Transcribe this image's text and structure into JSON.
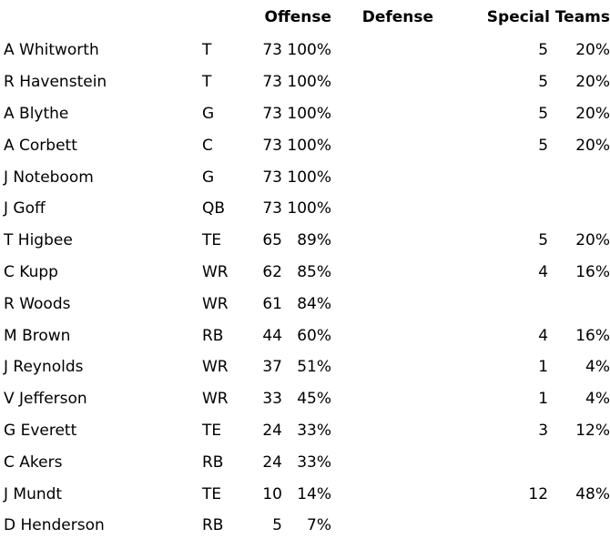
{
  "headers": {
    "offense": "Offense",
    "defense": "Defense",
    "special_teams": "Special Teams"
  },
  "rows": [
    {
      "name": "A Whitworth",
      "pos": "T",
      "off_snaps": "73",
      "off_pct": "100%",
      "def_snaps": "",
      "def_pct": "",
      "st_snaps": "5",
      "st_pct": "20%"
    },
    {
      "name": "R Havenstein",
      "pos": "T",
      "off_snaps": "73",
      "off_pct": "100%",
      "def_snaps": "",
      "def_pct": "",
      "st_snaps": "5",
      "st_pct": "20%"
    },
    {
      "name": "A Blythe",
      "pos": "G",
      "off_snaps": "73",
      "off_pct": "100%",
      "def_snaps": "",
      "def_pct": "",
      "st_snaps": "5",
      "st_pct": "20%"
    },
    {
      "name": "A Corbett",
      "pos": "C",
      "off_snaps": "73",
      "off_pct": "100%",
      "def_snaps": "",
      "def_pct": "",
      "st_snaps": "5",
      "st_pct": "20%"
    },
    {
      "name": "J Noteboom",
      "pos": "G",
      "off_snaps": "73",
      "off_pct": "100%",
      "def_snaps": "",
      "def_pct": "",
      "st_snaps": "",
      "st_pct": ""
    },
    {
      "name": "J Goff",
      "pos": "QB",
      "off_snaps": "73",
      "off_pct": "100%",
      "def_snaps": "",
      "def_pct": "",
      "st_snaps": "",
      "st_pct": ""
    },
    {
      "name": "T Higbee",
      "pos": "TE",
      "off_snaps": "65",
      "off_pct": "89%",
      "def_snaps": "",
      "def_pct": "",
      "st_snaps": "5",
      "st_pct": "20%"
    },
    {
      "name": "C Kupp",
      "pos": "WR",
      "off_snaps": "62",
      "off_pct": "85%",
      "def_snaps": "",
      "def_pct": "",
      "st_snaps": "4",
      "st_pct": "16%"
    },
    {
      "name": "R Woods",
      "pos": "WR",
      "off_snaps": "61",
      "off_pct": "84%",
      "def_snaps": "",
      "def_pct": "",
      "st_snaps": "",
      "st_pct": ""
    },
    {
      "name": "M Brown",
      "pos": "RB",
      "off_snaps": "44",
      "off_pct": "60%",
      "def_snaps": "",
      "def_pct": "",
      "st_snaps": "4",
      "st_pct": "16%"
    },
    {
      "name": "J Reynolds",
      "pos": "WR",
      "off_snaps": "37",
      "off_pct": "51%",
      "def_snaps": "",
      "def_pct": "",
      "st_snaps": "1",
      "st_pct": "4%"
    },
    {
      "name": "V Jefferson",
      "pos": "WR",
      "off_snaps": "33",
      "off_pct": "45%",
      "def_snaps": "",
      "def_pct": "",
      "st_snaps": "1",
      "st_pct": "4%"
    },
    {
      "name": "G Everett",
      "pos": "TE",
      "off_snaps": "24",
      "off_pct": "33%",
      "def_snaps": "",
      "def_pct": "",
      "st_snaps": "3",
      "st_pct": "12%"
    },
    {
      "name": "C Akers",
      "pos": "RB",
      "off_snaps": "24",
      "off_pct": "33%",
      "def_snaps": "",
      "def_pct": "",
      "st_snaps": "",
      "st_pct": ""
    },
    {
      "name": "J Mundt",
      "pos": "TE",
      "off_snaps": "10",
      "off_pct": "14%",
      "def_snaps": "",
      "def_pct": "",
      "st_snaps": "12",
      "st_pct": "48%"
    },
    {
      "name": "D Henderson",
      "pos": "RB",
      "off_snaps": "5",
      "off_pct": "7%",
      "def_snaps": "",
      "def_pct": "",
      "st_snaps": "",
      "st_pct": ""
    }
  ]
}
